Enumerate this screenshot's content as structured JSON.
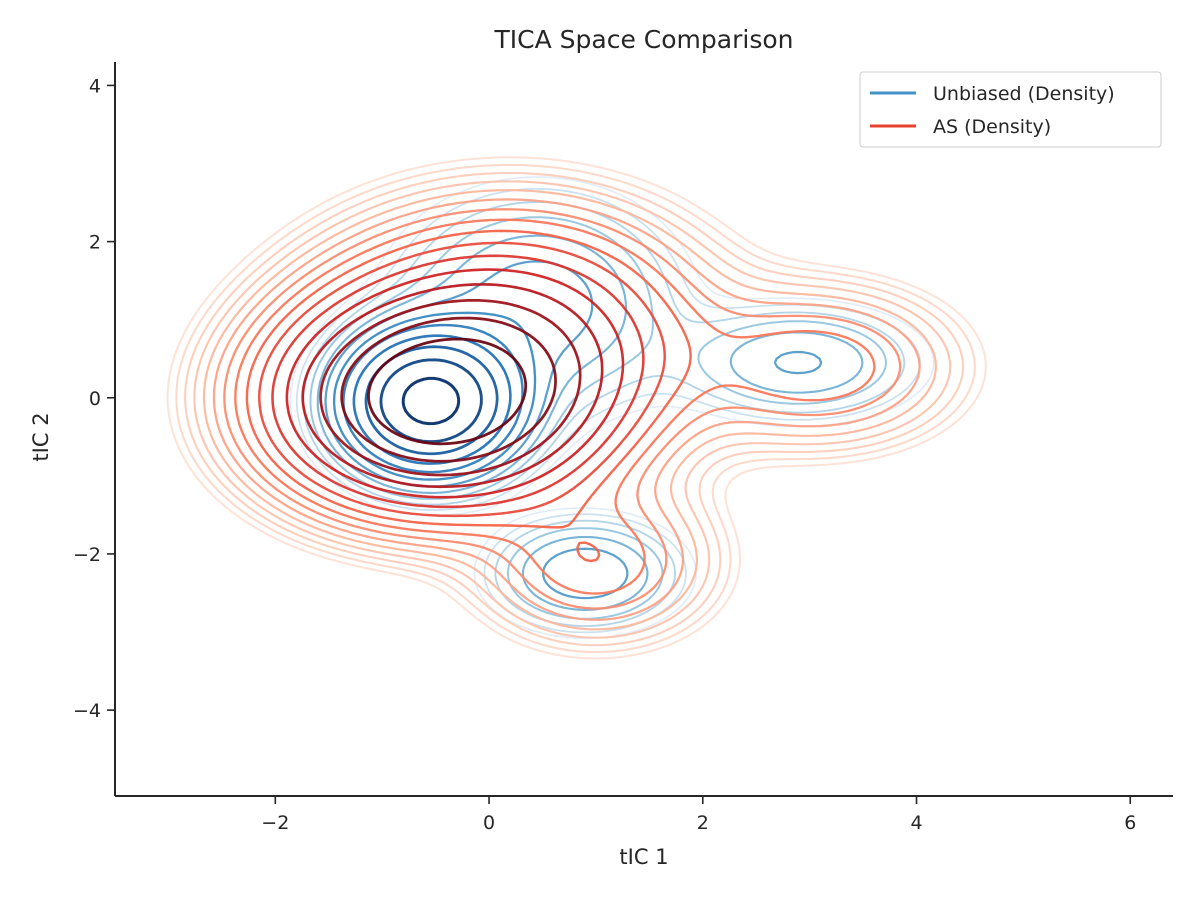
{
  "chart_data": {
    "type": "contour",
    "title": "TICA Space Comparison",
    "xlabel": "tIC 1",
    "ylabel": "tIC 2",
    "xlim": [
      -3.5,
      6.4
    ],
    "ylim": [
      -5.1,
      4.3
    ],
    "xticks": [
      -2,
      0,
      2,
      4,
      6
    ],
    "yticks": [
      -4,
      -2,
      0,
      2,
      4
    ],
    "xtick_labels": [
      "−2",
      "0",
      "2",
      "4",
      "6"
    ],
    "ytick_labels": [
      "−4",
      "−2",
      "0",
      "2",
      "4"
    ],
    "grid": false,
    "legend": {
      "placement": "top-right",
      "entries": [
        "Unbiased (Density)",
        "AS (Density)"
      ]
    },
    "series": [
      {
        "name": "Unbiased (Density)",
        "kind": "kde-contour",
        "colormap": "Blues",
        "line_color": "#4292c6",
        "modes": [
          {
            "x": -0.55,
            "y": -0.05,
            "sx": 0.45,
            "sy": 0.5,
            "weight": 1.0
          },
          {
            "x": 0.45,
            "y": 1.2,
            "sx": 0.75,
            "sy": 0.8,
            "weight": 0.12
          },
          {
            "x": 0.9,
            "y": -2.25,
            "sx": 0.5,
            "sy": 0.4,
            "weight": 0.13
          },
          {
            "x": 2.9,
            "y": 0.45,
            "sx": 0.65,
            "sy": 0.42,
            "weight": 0.1
          }
        ]
      },
      {
        "name": "AS (Density)",
        "kind": "kde-contour",
        "colormap": "Reds",
        "line_color": "#e8412c",
        "modes": [
          {
            "x": -0.5,
            "y": -0.05,
            "sx": 0.85,
            "sy": 0.75,
            "weight": 1.0
          },
          {
            "x": 0.2,
            "y": 0.8,
            "sx": 1.0,
            "sy": 0.9,
            "weight": 0.35
          },
          {
            "x": 1.0,
            "y": -2.1,
            "sx": 0.65,
            "sy": 0.6,
            "weight": 0.12
          },
          {
            "x": 3.1,
            "y": 0.4,
            "sx": 0.75,
            "sy": 0.6,
            "weight": 0.12
          }
        ]
      }
    ]
  }
}
